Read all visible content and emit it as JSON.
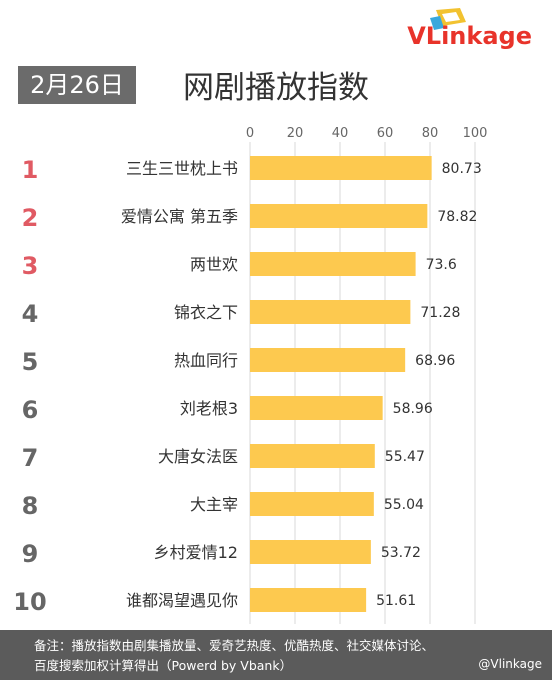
{
  "logo": {
    "text": "VLinkage"
  },
  "date_label": "2月26日",
  "watermark": "@Vlinkage",
  "footer": {
    "line1": "备注：播放指数由剧集播放量、爱奇艺热度、优酷热度、社交媒体讨论、",
    "line2": "百度搜索加权计算得出（Powerd by Vbank）"
  },
  "chart_data": {
    "type": "bar",
    "orientation": "horizontal",
    "title": "网剧播放指数",
    "xlim": [
      0,
      100
    ],
    "xticks": [
      0,
      20,
      40,
      60,
      80,
      100
    ],
    "ranks": [
      "1",
      "2",
      "3",
      "4",
      "5",
      "6",
      "7",
      "8",
      "9",
      "10"
    ],
    "categories": [
      "三生三世枕上书",
      "爱情公寓 第五季",
      "两世欢",
      "锦衣之下",
      "热血同行",
      "刘老根3",
      "大唐女法医",
      "大主宰",
      "乡村爱情12",
      "谁都渴望遇见你"
    ],
    "values": [
      80.73,
      78.82,
      73.6,
      71.28,
      68.96,
      58.96,
      55.47,
      55.04,
      53.72,
      51.61
    ],
    "value_labels": [
      "80.73",
      "78.82",
      "73.6",
      "71.28",
      "68.96",
      "58.96",
      "55.47",
      "55.04",
      "53.72",
      "51.61"
    ],
    "colors": {
      "bar": "#fdc94f",
      "rank_top": "#e05a63",
      "rank_other": "#666666",
      "grid": "#d9d9d9"
    }
  }
}
